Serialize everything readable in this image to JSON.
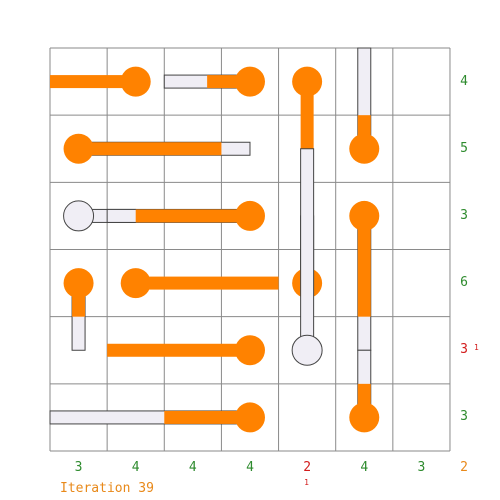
{
  "puzzle": {
    "rows": 6,
    "cols": 7,
    "colors": {
      "filled": "#ff8200",
      "empty": "#f0eef5",
      "grid": "#8a8a8a",
      "ok": "#2e8b2e",
      "error": "#d21c1c",
      "corner": "#e8891a"
    },
    "col_clues": [
      {
        "value": "3",
        "state": "ok"
      },
      {
        "value": "4",
        "state": "ok"
      },
      {
        "value": "4",
        "state": "ok"
      },
      {
        "value": "4",
        "state": "ok"
      },
      {
        "value": "2",
        "state": "error",
        "note": "1"
      },
      {
        "value": "4",
        "state": "ok"
      },
      {
        "value": "3",
        "state": "ok"
      }
    ],
    "row_clues": [
      {
        "value": "4",
        "state": "ok"
      },
      {
        "value": "5",
        "state": "ok"
      },
      {
        "value": "3",
        "state": "ok"
      },
      {
        "value": "6",
        "state": "ok"
      },
      {
        "value": "3",
        "state": "error",
        "note": "1"
      },
      {
        "value": "3",
        "state": "ok"
      }
    ],
    "corner_value": "2",
    "thermometers": [
      {
        "bulb": [
          0,
          1
        ],
        "dir": "left",
        "len": 1.5,
        "fill": 1.5
      },
      {
        "bulb": [
          0,
          3
        ],
        "dir": "left",
        "len": 1.5,
        "fill": 0.75
      },
      {
        "bulb": [
          0,
          4
        ],
        "dir": "down",
        "len": 1.0,
        "fill": 1.0
      },
      {
        "bulb": [
          1,
          0
        ],
        "dir": "right",
        "len": 3.0,
        "fill": 2.5
      },
      {
        "bulb": [
          1,
          5
        ],
        "dir": "up",
        "len": 1.5,
        "fill": 0.5
      },
      {
        "bulb": [
          2,
          0
        ],
        "dir": "right",
        "len": 1.0,
        "fill": 0.0
      },
      {
        "bulb": [
          2,
          3
        ],
        "dir": "left",
        "len": 2.5,
        "fill": 2.0
      },
      {
        "bulb": [
          2,
          5
        ],
        "dir": "down",
        "len": 2.0,
        "fill": 1.5
      },
      {
        "bulb": [
          3,
          0
        ],
        "dir": "down",
        "len": 1.0,
        "fill": 0.5
      },
      {
        "bulb": [
          3,
          1
        ],
        "dir": "right",
        "len": 2.5,
        "fill": 2.5
      },
      {
        "bulb": [
          3,
          4
        ],
        "dir": "up",
        "len": 1.0,
        "fill": 0.5
      },
      {
        "bulb": [
          4,
          3
        ],
        "dir": "left",
        "len": 2.5,
        "fill": 2.5
      },
      {
        "bulb": [
          4,
          4
        ],
        "dir": "up",
        "len": 3.0,
        "fill": 0.0
      },
      {
        "bulb": [
          5,
          3
        ],
        "dir": "left",
        "len": 3.5,
        "fill": 1.5
      },
      {
        "bulb": [
          5,
          5
        ],
        "dir": "up",
        "len": 1.0,
        "fill": 0.5
      }
    ]
  },
  "status": "Iteration 39"
}
